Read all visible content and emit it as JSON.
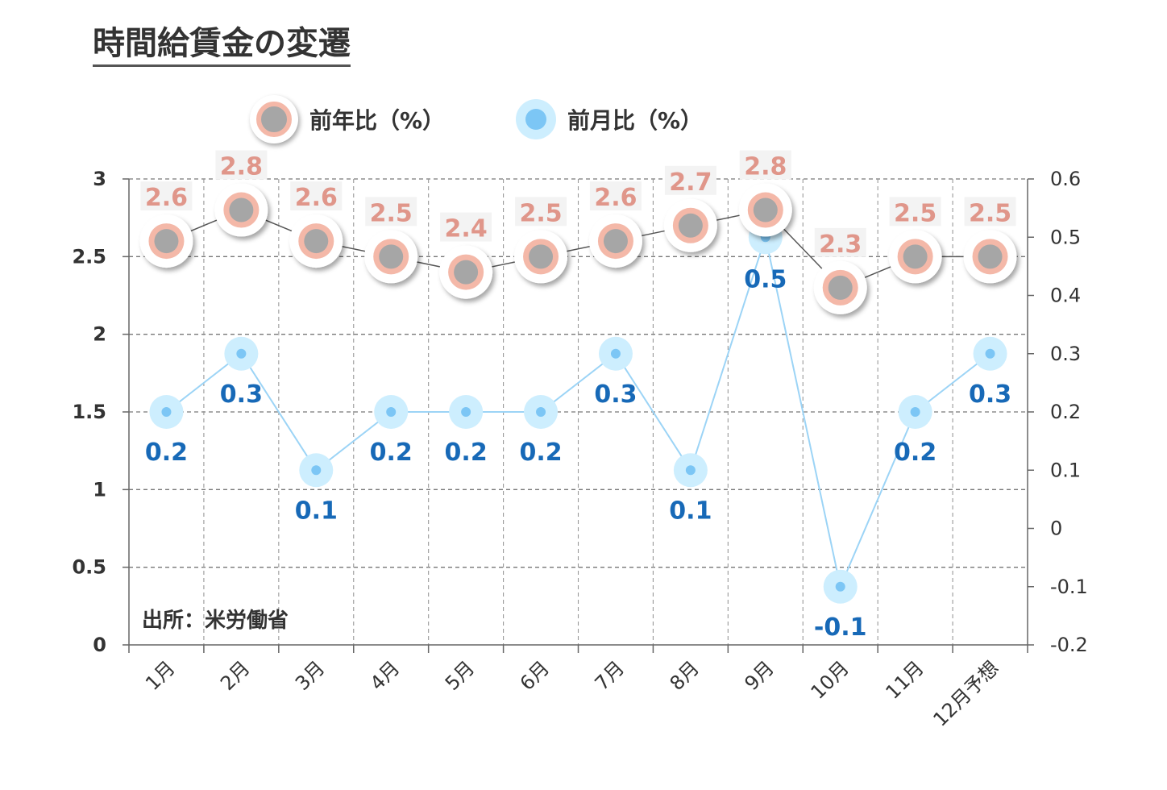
{
  "title": "時間給賃金の変遷",
  "legend": {
    "annual": "前年比（%）",
    "monthly": "前月比（%）"
  },
  "source": "出所：米労働省",
  "colors": {
    "annual_ring": "#f4b8a8",
    "annual_core": "#a6a6a6",
    "annual_line": "#555555",
    "annual_label": "#e0968a",
    "monthly_halo": "#cdeefe",
    "monthly_dot": "#7cc6f5",
    "monthly_line": "#9cd4f6",
    "monthly_label": "#1769b7"
  },
  "chart_data": {
    "type": "line",
    "categories": [
      "1月",
      "2月",
      "3月",
      "4月",
      "5月",
      "6月",
      "7月",
      "8月",
      "9月",
      "10月",
      "11月",
      "12月予想"
    ],
    "series": [
      {
        "name": "前年比（%）",
        "axis": "left",
        "values": [
          2.6,
          2.8,
          2.6,
          2.5,
          2.4,
          2.5,
          2.6,
          2.7,
          2.8,
          2.3,
          2.5,
          2.5
        ]
      },
      {
        "name": "前月比（%）",
        "axis": "right",
        "values": [
          0.2,
          0.3,
          0.1,
          0.2,
          0.2,
          0.2,
          0.3,
          0.1,
          0.5,
          -0.1,
          0.2,
          0.3
        ]
      }
    ],
    "y_left": {
      "min": 0,
      "max": 3,
      "ticks": [
        "0",
        "0.5",
        "1",
        "1.5",
        "2",
        "2.5",
        "3"
      ]
    },
    "y_right": {
      "min": -0.2,
      "max": 0.6,
      "ticks": [
        "-0.2",
        "-0.1",
        "0",
        "0.1",
        "0.2",
        "0.3",
        "0.4",
        "0.5",
        "0.6"
      ]
    },
    "grid": true,
    "legend_position": "top"
  }
}
